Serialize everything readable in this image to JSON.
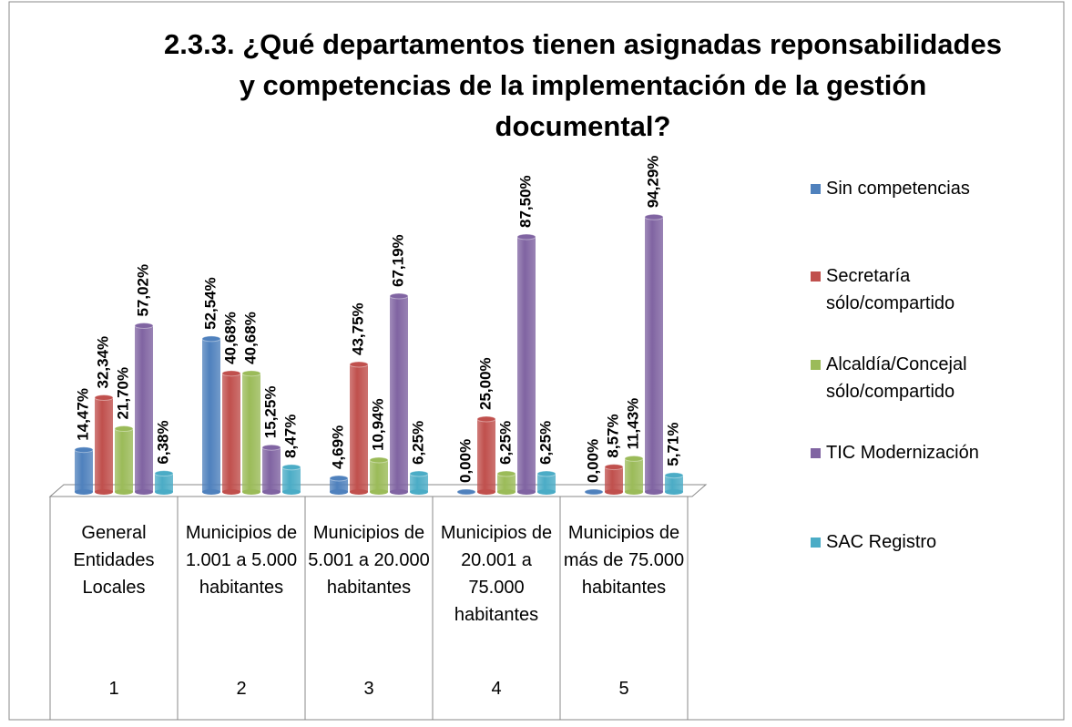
{
  "chart_data": {
    "type": "bar",
    "title": "2.3.3. ¿Qué departamentos tienen asignadas reponsabilidades y competencias de la implementación de la gestión documental?",
    "categories": [
      "General Entidades Locales",
      "Municipios de 1.001 a 5.000 habitantes",
      "Municipios de 5.001 a 20.000 habitantes",
      "Municipios de 20.001 a 75.000 habitantes",
      "Municipios de más de 75.000 habitantes"
    ],
    "category_numbers": [
      "1",
      "2",
      "3",
      "4",
      "5"
    ],
    "series": [
      {
        "name": "Sin competencias",
        "color": "#4f81bd",
        "values": [
          14.47,
          52.54,
          4.69,
          0,
          0
        ],
        "value_labels": [
          "14,47%",
          "52,54%",
          "4,69%",
          "0,00%",
          "0,00%"
        ]
      },
      {
        "name": "Secretaría sólo/compartido",
        "color": "#c0504d",
        "values": [
          32.34,
          40.68,
          43.75,
          25,
          8.57
        ],
        "value_labels": [
          "32,34%",
          "40,68%",
          "43,75%",
          "25,00%",
          "8,57%"
        ]
      },
      {
        "name": "Alcaldía/Concejal sólo/compartido",
        "color": "#9bbb59",
        "values": [
          21.7,
          40.68,
          10.94,
          6.25,
          11.43
        ],
        "value_labels": [
          "21,70%",
          "40,68%",
          "10,94%",
          "6,25%",
          "11,43%"
        ]
      },
      {
        "name": "TIC Modernización",
        "color": "#8064a2",
        "values": [
          57.02,
          15.25,
          67.19,
          87.5,
          94.29
        ],
        "value_labels": [
          "57,02%",
          "15,25%",
          "67,19%",
          "87,50%",
          "94,29%"
        ]
      },
      {
        "name": "SAC Registro",
        "color": "#4bacc6",
        "values": [
          6.38,
          8.47,
          6.25,
          6.25,
          5.71
        ],
        "value_labels": [
          "6,38%",
          "8,47%",
          "6,25%",
          "6,25%",
          "5,71%"
        ]
      }
    ],
    "legend": "right"
  }
}
